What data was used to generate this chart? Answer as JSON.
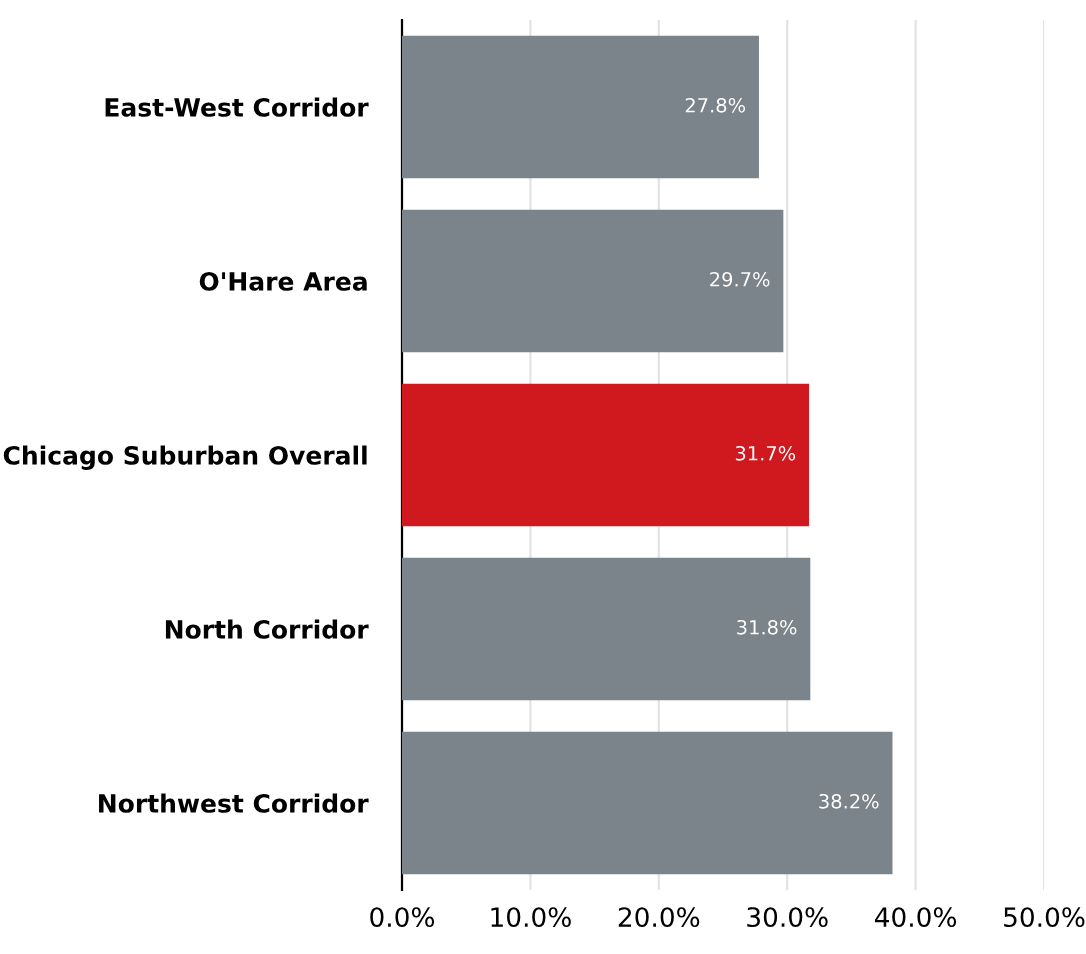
{
  "chart_data": {
    "type": "bar",
    "orientation": "horizontal",
    "categories": [
      "East-West Corridor",
      "O'Hare Area",
      "Chicago Suburban Overall",
      "North Corridor",
      "Northwest Corridor"
    ],
    "values": [
      27.8,
      29.7,
      31.7,
      31.8,
      38.2
    ],
    "colors": [
      "#7b848a",
      "#7b848a",
      "#d0181f",
      "#7b848a",
      "#7b848a"
    ],
    "value_labels": [
      "27.8%",
      "29.7%",
      "31.7%",
      "31.8%",
      "38.2%"
    ],
    "xlim": [
      0,
      50
    ],
    "xticks": [
      {
        "value": 0,
        "label": "0.0%"
      },
      {
        "value": 10,
        "label": "10.0%"
      },
      {
        "value": 20,
        "label": "20.0%"
      },
      {
        "value": 30,
        "label": "30.0%"
      },
      {
        "value": 40,
        "label": "40.0%"
      },
      {
        "value": 50,
        "label": "50.0%"
      }
    ],
    "grid": "x"
  }
}
